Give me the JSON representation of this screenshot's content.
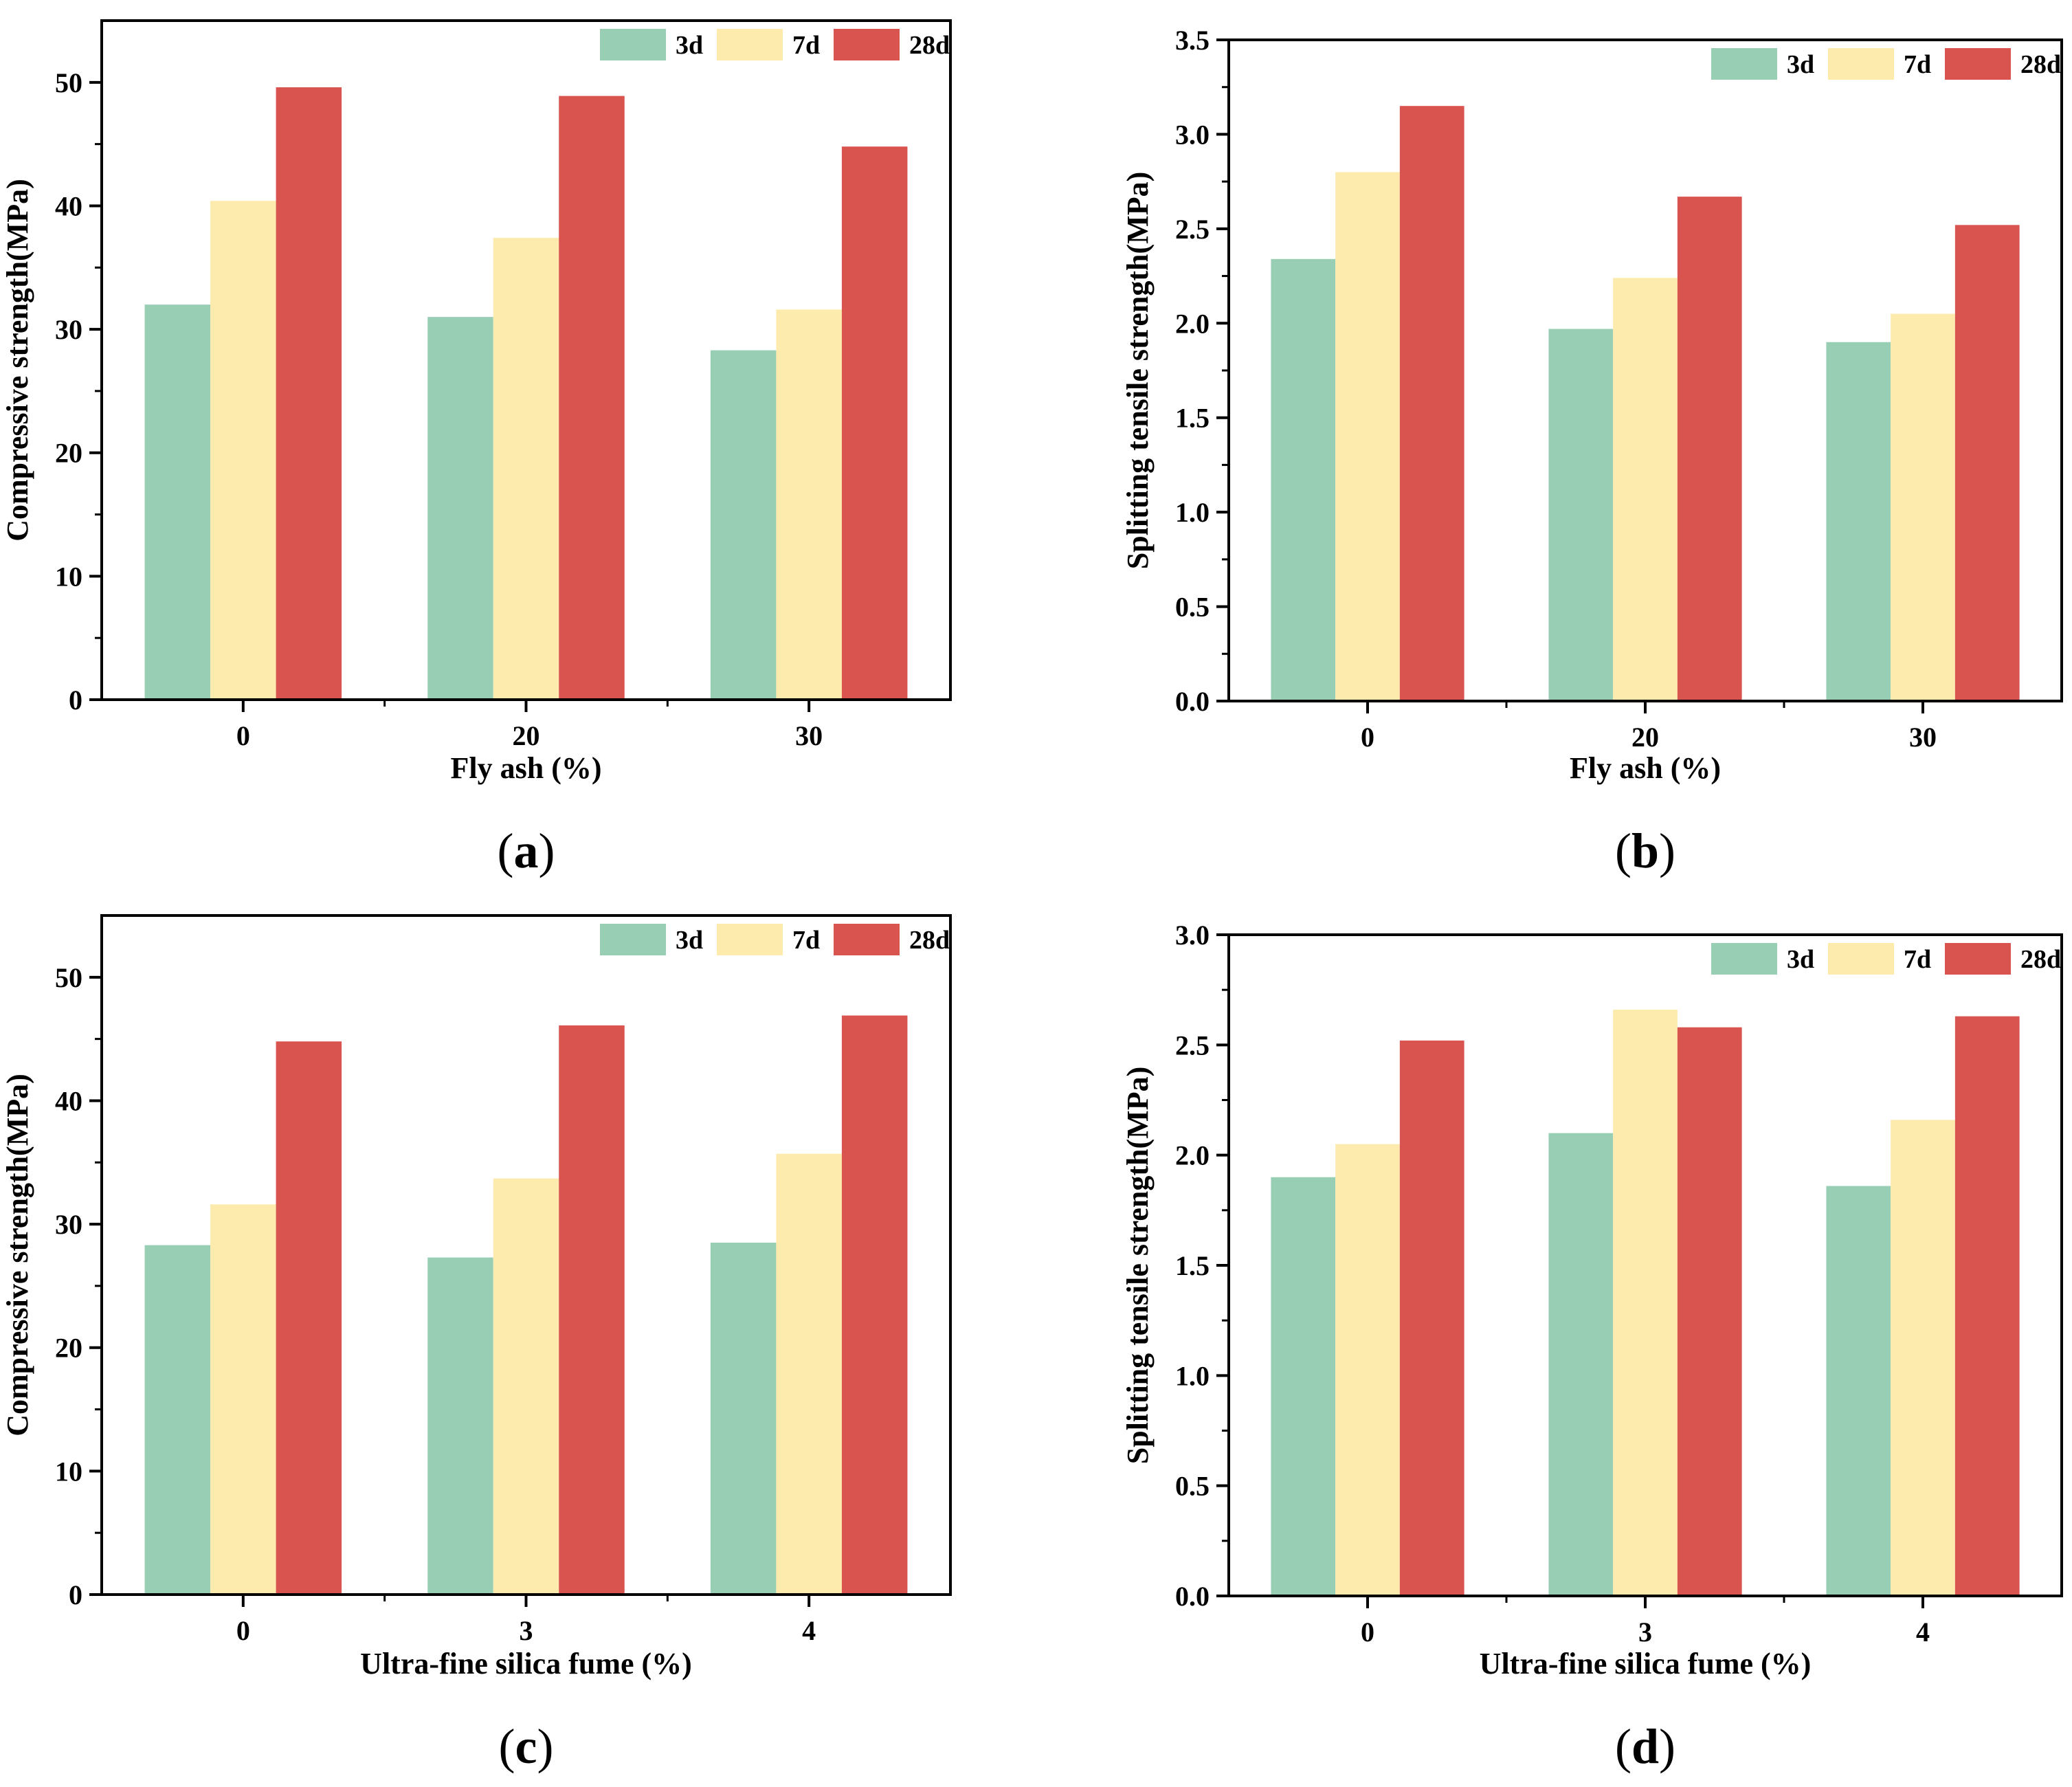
{
  "colors": {
    "3d": "#98CFB4",
    "7d": "#FDEBAE",
    "28d": "#D9534F",
    "axis": "#000000"
  },
  "chart_data": [
    {
      "id": "a",
      "caption_letter": "a",
      "type": "bar",
      "xlabel": "Fly ash (%)",
      "ylabel": "Compressive strength(MPa)",
      "categories": [
        "0",
        "20",
        "30"
      ],
      "ylim": [
        0,
        55
      ],
      "yticks": [
        0,
        10,
        20,
        30,
        40,
        50
      ],
      "ytick_labels": [
        "0",
        "10",
        "20",
        "30",
        "40",
        "50"
      ],
      "minor_ticks": true,
      "legend": "top-right",
      "series": [
        {
          "name": "3d",
          "values": [
            32.0,
            31.0,
            28.3
          ]
        },
        {
          "name": "7d",
          "values": [
            40.4,
            37.4,
            31.6
          ]
        },
        {
          "name": "28d",
          "values": [
            49.6,
            48.9,
            44.8
          ]
        }
      ]
    },
    {
      "id": "b",
      "caption_letter": "b",
      "type": "bar",
      "xlabel": "Fly ash (%)",
      "ylabel": "Splitting tensile strength(MPa)",
      "categories": [
        "0",
        "20",
        "30"
      ],
      "ylim": [
        0,
        3.5
      ],
      "yticks": [
        0,
        0.5,
        1.0,
        1.5,
        2.0,
        2.5,
        3.0,
        3.5
      ],
      "ytick_labels": [
        "0.0",
        "0.5",
        "1.0",
        "1.5",
        "2.0",
        "2.5",
        "3.0",
        "3.5"
      ],
      "minor_ticks": true,
      "legend": "top-right",
      "series": [
        {
          "name": "3d",
          "values": [
            2.34,
            1.97,
            1.9
          ]
        },
        {
          "name": "7d",
          "values": [
            2.8,
            2.24,
            2.05
          ]
        },
        {
          "name": "28d",
          "values": [
            3.15,
            2.67,
            2.52
          ]
        }
      ]
    },
    {
      "id": "c",
      "caption_letter": "c",
      "type": "bar",
      "xlabel": "Ultra-fine silica fume (%)",
      "ylabel": "Compressive strength(MPa)",
      "categories": [
        "0",
        "3",
        "4"
      ],
      "ylim": [
        0,
        55
      ],
      "yticks": [
        0,
        10,
        20,
        30,
        40,
        50
      ],
      "ytick_labels": [
        "0",
        "10",
        "20",
        "30",
        "40",
        "50"
      ],
      "minor_ticks": true,
      "legend": "top-right",
      "series": [
        {
          "name": "3d",
          "values": [
            28.3,
            27.3,
            28.5
          ]
        },
        {
          "name": "7d",
          "values": [
            31.6,
            33.7,
            35.7
          ]
        },
        {
          "name": "28d",
          "values": [
            44.8,
            46.1,
            46.9
          ]
        }
      ]
    },
    {
      "id": "d",
      "caption_letter": "d",
      "type": "bar",
      "xlabel": "Ultra-fine silica fume (%)",
      "ylabel": "Splitting tensile strength(MPa)",
      "categories": [
        "0",
        "3",
        "4"
      ],
      "ylim": [
        0,
        3.0
      ],
      "yticks": [
        0,
        0.5,
        1.0,
        1.5,
        2.0,
        2.5,
        3.0
      ],
      "ytick_labels": [
        "0.0",
        "0.5",
        "1.0",
        "1.5",
        "2.0",
        "2.5",
        "3.0"
      ],
      "minor_ticks": true,
      "legend": "top-right",
      "series": [
        {
          "name": "3d",
          "values": [
            1.9,
            2.1,
            1.86
          ]
        },
        {
          "name": "7d",
          "values": [
            2.05,
            2.66,
            2.16
          ]
        },
        {
          "name": "28d",
          "values": [
            2.52,
            2.58,
            2.63
          ]
        }
      ]
    }
  ]
}
